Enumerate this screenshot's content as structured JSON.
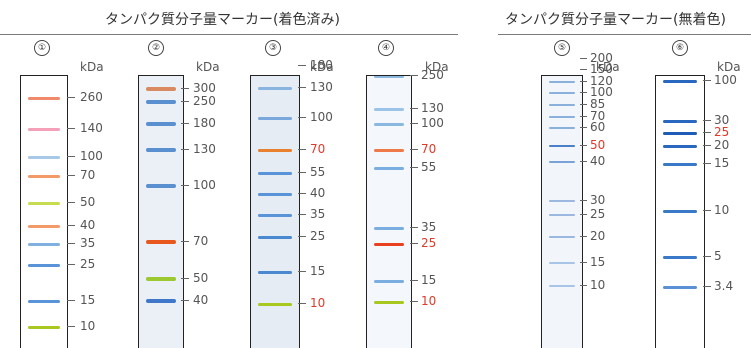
{
  "sections": {
    "stained": {
      "title": "タンパク質分子量マーカー(着色済み)"
    },
    "unstained": {
      "title": "タンパク質分子量マーカー(無着色)"
    }
  },
  "unit": "kDa",
  "lanes": [
    {
      "number": "①",
      "bands": [
        {
          "label": "260",
          "color": "#f08a6a"
        },
        {
          "label": "140",
          "color": "#f3a0b8"
        },
        {
          "label": "100",
          "color": "#a8c8e8"
        },
        {
          "label": "70",
          "color": "#f49a68"
        },
        {
          "label": "50",
          "color": "#c8dc50"
        },
        {
          "label": "40",
          "color": "#f49a68"
        },
        {
          "label": "35",
          "color": "#7fb0e0"
        },
        {
          "label": "25",
          "color": "#5a94d8"
        },
        {
          "label": "15",
          "color": "#5a94d8"
        },
        {
          "label": "10",
          "color": "#a8c820"
        }
      ]
    },
    {
      "number": "②",
      "bands": [
        {
          "label": "300",
          "color": "#d98a60"
        },
        {
          "label": "250",
          "color": "#5a8fd0"
        },
        {
          "label": "180",
          "color": "#5a8fd0"
        },
        {
          "label": "130",
          "color": "#5a8fd0"
        },
        {
          "label": "100",
          "color": "#5a8fd0"
        },
        {
          "label": "70",
          "color": "#e8581e"
        },
        {
          "label": "50",
          "color": "#9cc830"
        },
        {
          "label": "40",
          "color": "#3f78c8"
        }
      ]
    },
    {
      "number": "③",
      "bands": [
        {
          "label": "180",
          "color": "#8ab4e0"
        },
        {
          "label": "130",
          "color": "#8ab4e0"
        },
        {
          "label": "100",
          "color": "#7aa8dc"
        },
        {
          "label": "70",
          "color": "#e8802e"
        },
        {
          "label": "55",
          "color": "#5a94d8"
        },
        {
          "label": "40",
          "color": "#5a94d8"
        },
        {
          "label": "35",
          "color": "#5a94d8"
        },
        {
          "label": "25",
          "color": "#4a88d0"
        },
        {
          "label": "15",
          "color": "#4a88d0"
        },
        {
          "label": "10",
          "color": "#a8c820"
        }
      ]
    },
    {
      "number": "④",
      "bands": [
        {
          "label": "250",
          "color": "#8ab8e0"
        },
        {
          "label": "130",
          "color": "#9cc4e8"
        },
        {
          "label": "100",
          "color": "#8ab8e0"
        },
        {
          "label": "70",
          "color": "#ee7a4a"
        },
        {
          "label": "55",
          "color": "#7aaee0"
        },
        {
          "label": "35",
          "color": "#7aaee0"
        },
        {
          "label": "25",
          "color": "#e84020"
        },
        {
          "label": "15",
          "color": "#7aaee0"
        },
        {
          "label": "10",
          "color": "#a8c820"
        }
      ]
    },
    {
      "number": "⑤",
      "bands": [
        {
          "label": "200",
          "color": "#8ab0dc"
        },
        {
          "label": "150",
          "color": "#8ab0dc"
        },
        {
          "label": "120",
          "color": "#8ab0dc"
        },
        {
          "label": "100",
          "color": "#8ab0dc"
        },
        {
          "label": "85",
          "color": "#8ab0dc"
        },
        {
          "label": "70",
          "color": "#8ab0dc"
        },
        {
          "label": "60",
          "color": "#8ab0dc"
        },
        {
          "label": "50",
          "color": "#4a80c8"
        },
        {
          "label": "40",
          "color": "#7aa4d8"
        },
        {
          "label": "30",
          "color": "#9ab8e0"
        },
        {
          "label": "25",
          "color": "#9ab8e0"
        },
        {
          "label": "20",
          "color": "#9ab8e0"
        },
        {
          "label": "15",
          "color": "#a8c4e6"
        },
        {
          "label": "10",
          "color": "#a8c4e6"
        }
      ]
    },
    {
      "number": "⑥",
      "bands": [
        {
          "label": "100",
          "color": "#2a68c0"
        },
        {
          "label": "30",
          "color": "#2a68c0"
        },
        {
          "label": "25",
          "color": "#1f5cb8"
        },
        {
          "label": "20",
          "color": "#2a68c0"
        },
        {
          "label": "15",
          "color": "#3a78c8"
        },
        {
          "label": "10",
          "color": "#3a78c8"
        },
        {
          "label": "5",
          "color": "#3a78c8"
        },
        {
          "label": "3.4",
          "color": "#5a90d4"
        }
      ]
    }
  ],
  "colors": {
    "reference_label": "#e03a2a",
    "normal_label": "#555555"
  }
}
